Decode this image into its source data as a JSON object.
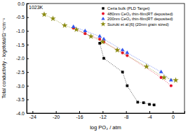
{
  "chart_data": {
    "type": "scatter",
    "title": "1023K",
    "x_label": "log PO₂ / atm",
    "y_label": "Total conductivity - logσtotal/Ω⁻¹cm⁻¹",
    "xlim": [
      -25,
      2
    ],
    "ylim": [
      -4,
      0
    ],
    "xticks": [
      -24,
      -20,
      -16,
      -12,
      -8,
      -4,
      0
    ],
    "yticks": [
      {
        "value": -4,
        "label": "-4.0"
      },
      {
        "value": -3.5,
        "label": "-3.5"
      },
      {
        "value": -3,
        "label": "-3.0"
      },
      {
        "value": -2.5,
        "label": "-2.5"
      },
      {
        "value": -2,
        "label": "-2.0"
      },
      {
        "value": -1.5,
        "label": "-1.5"
      },
      {
        "value": -1,
        "label": "-1.0"
      },
      {
        "value": -0.5,
        "label": "-0.5"
      },
      {
        "value": 0,
        "label": "0.0"
      }
    ],
    "legend": "upper right",
    "series": [
      {
        "name": "Ceria bulk (PLD Target)",
        "color": "#000000",
        "marker": "square",
        "line_style": "dotted",
        "x": [
          -12.5,
          -11.8,
          -8.6,
          -7.8,
          -6,
          -5,
          -4,
          -3.2
        ],
        "values": [
          -1.45,
          -2.0,
          -2.5,
          -3.0,
          -3.6,
          -3.62,
          -3.68,
          -3.7
        ]
      },
      {
        "name": "480nm CeO₂ thin-film(RT deposited)",
        "color": "#e8102a",
        "marker": "circle",
        "line_style": "dotted",
        "x": [
          -17,
          -15,
          -12.5,
          -11.8,
          -8.6,
          -7.8,
          -2,
          -0.3
        ],
        "values": [
          -0.9,
          -1.1,
          -1.3,
          -1.4,
          -1.8,
          -1.9,
          -2.7,
          -3.0
        ]
      },
      {
        "name": "200nm CeO₂ thin-film(RT deposited)",
        "color": "#3355ee",
        "marker": "triangle",
        "line_style": "dotted",
        "x": [
          -17,
          -15,
          -12.5,
          -11.8,
          -8.6,
          -7.8,
          -2,
          -0.3
        ],
        "values": [
          -0.85,
          -1.0,
          -1.2,
          -1.3,
          -1.7,
          -1.8,
          -2.5,
          -2.8
        ]
      },
      {
        "name": "Suzuki et al.[6] (20nm grain sized)",
        "color": "#8a8a10",
        "marker": "star",
        "line_style": "dotted",
        "x": [
          -22,
          -20.5,
          -18.5,
          -16.5,
          -14,
          -12,
          -9.5,
          -4.5,
          -1.5,
          0.5
        ],
        "values": [
          -0.4,
          -0.55,
          -0.8,
          -0.95,
          -1.2,
          -1.4,
          -1.7,
          -2.3,
          -2.7,
          -2.8
        ]
      }
    ]
  }
}
